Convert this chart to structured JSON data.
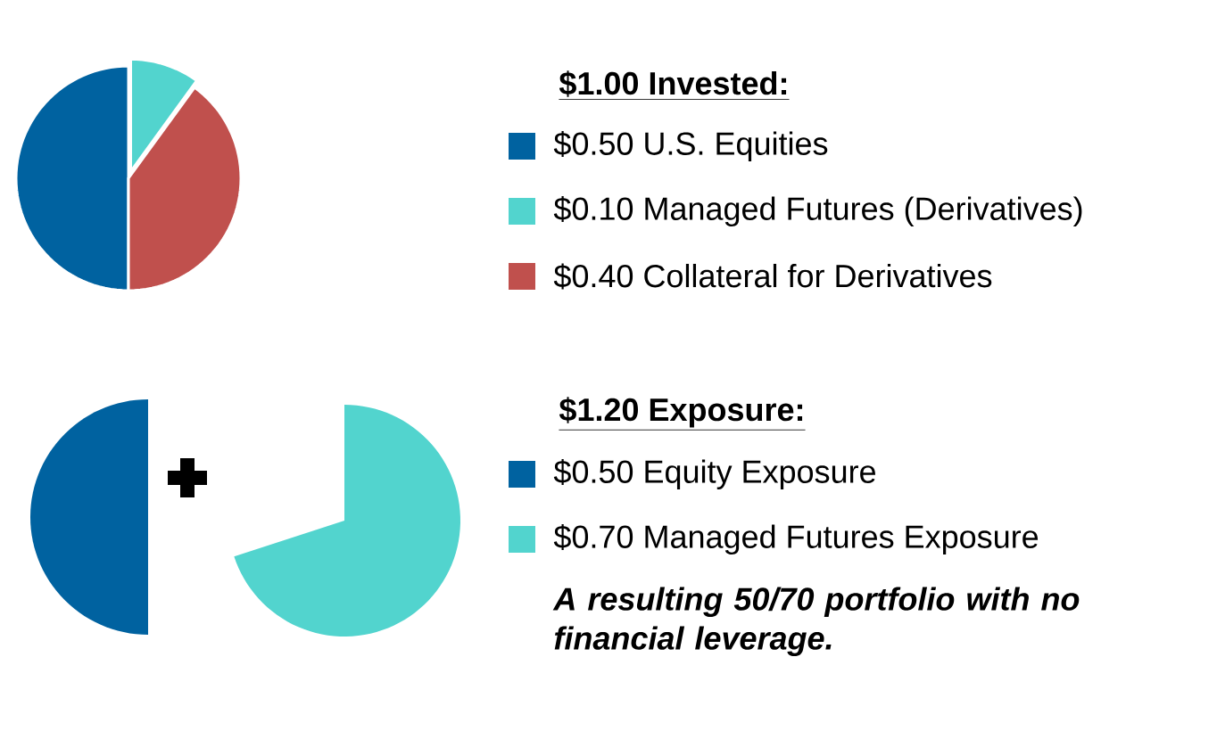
{
  "chart_data": [
    {
      "type": "pie",
      "title": "$1.00 Invested:",
      "categories": [
        "$0.50 U.S. Equities",
        "$0.10 Managed Futures (Derivatives)",
        "$0.40 Collateral for Derivatives"
      ],
      "values": [
        0.5,
        0.1,
        0.4
      ],
      "colors": [
        "#0062a0",
        "#52d4ce",
        "#c0504d"
      ],
      "legend": "right"
    },
    {
      "type": "other",
      "title": "$1.20 Exposure:",
      "categories": [
        "Equity Exposure",
        "Managed Futures Exposure"
      ],
      "values": [
        0.5,
        0.7
      ],
      "value_labels": [
        "$0.50",
        "$0.70"
      ],
      "colors": [
        "#0062a0",
        "#52d4ce"
      ],
      "annotations": [
        "A resulting 50/70 portfolio with no financial leverage."
      ]
    }
  ]
}
